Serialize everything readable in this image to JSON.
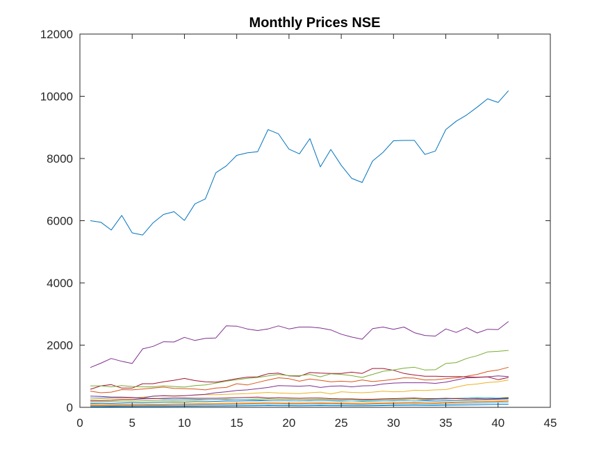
{
  "chart_data": {
    "type": "line",
    "title": "Monthly Prices NSE",
    "xlabel": "",
    "ylabel": "",
    "xlim": [
      0,
      45
    ],
    "ylim": [
      0,
      12000
    ],
    "x_ticks": [
      0,
      5,
      10,
      15,
      20,
      25,
      30,
      35,
      40,
      45
    ],
    "y_ticks": [
      0,
      2000,
      4000,
      6000,
      8000,
      10000,
      12000
    ],
    "x_tick_labels": [
      "0",
      "5",
      "10",
      "15",
      "20",
      "25",
      "30",
      "35",
      "40",
      "45"
    ],
    "y_tick_labels": [
      "0",
      "2000",
      "4000",
      "6000",
      "8000",
      "10000",
      "12000"
    ],
    "grid": false,
    "legend": "none",
    "x": [
      1,
      2,
      3,
      4,
      5,
      6,
      7,
      8,
      9,
      10,
      11,
      12,
      13,
      14,
      15,
      16,
      17,
      18,
      19,
      20,
      21,
      22,
      23,
      24,
      25,
      26,
      27,
      28,
      29,
      30,
      31,
      32,
      33,
      34,
      35,
      36,
      37,
      38,
      39,
      40,
      41
    ],
    "series": [
      {
        "color": "#0072BD",
        "values": [
          6000,
          5950,
          5700,
          6170,
          5610,
          5540,
          5930,
          6200,
          6290,
          6010,
          6540,
          6700,
          7540,
          7760,
          8100,
          8180,
          8220,
          8930,
          8790,
          8300,
          8150,
          8640,
          7730,
          8290,
          7780,
          7360,
          7230,
          7920,
          8200,
          8570,
          8580,
          8580,
          8130,
          8240,
          8930,
          9200,
          9400,
          9650,
          9920,
          9800,
          10180
        ]
      },
      {
        "color": "#7E2F8E",
        "values": [
          1280,
          1420,
          1570,
          1480,
          1410,
          1880,
          1960,
          2110,
          2100,
          2250,
          2150,
          2220,
          2230,
          2620,
          2610,
          2520,
          2470,
          2520,
          2620,
          2520,
          2580,
          2580,
          2550,
          2490,
          2350,
          2260,
          2190,
          2530,
          2580,
          2510,
          2580,
          2400,
          2310,
          2290,
          2520,
          2410,
          2560,
          2390,
          2510,
          2500,
          2760
        ]
      },
      {
        "color": "#77AC30",
        "values": [
          690,
          690,
          660,
          700,
          670,
          660,
          660,
          690,
          670,
          650,
          700,
          720,
          780,
          840,
          890,
          930,
          960,
          1010,
          1060,
          1020,
          1020,
          1060,
          980,
          1080,
          1060,
          1020,
          960,
          1060,
          1160,
          1200,
          1260,
          1290,
          1200,
          1210,
          1410,
          1440,
          1570,
          1660,
          1780,
          1800,
          1830
        ]
      },
      {
        "color": "#A2142F",
        "values": [
          580,
          690,
          730,
          620,
          620,
          760,
          760,
          820,
          870,
          930,
          860,
          820,
          810,
          860,
          920,
          970,
          980,
          1080,
          1100,
          1010,
          1000,
          1120,
          1100,
          1090,
          1090,
          1130,
          1090,
          1250,
          1250,
          1190,
          1090,
          1040,
          1000,
          1000,
          990,
          990,
          980,
          970,
          980,
          890,
          960
        ]
      },
      {
        "color": "#D95319",
        "values": [
          520,
          470,
          490,
          570,
          560,
          590,
          620,
          650,
          610,
          600,
          590,
          560,
          620,
          640,
          760,
          720,
          800,
          880,
          950,
          920,
          840,
          910,
          870,
          820,
          840,
          820,
          880,
          830,
          860,
          900,
          950,
          940,
          880,
          890,
          920,
          950,
          1000,
          1060,
          1150,
          1200,
          1290
        ]
      },
      {
        "color": "#7E2F8E",
        "values": [
          360,
          350,
          330,
          330,
          320,
          300,
          360,
          370,
          360,
          370,
          400,
          420,
          470,
          500,
          540,
          560,
          600,
          640,
          700,
          690,
          680,
          700,
          640,
          680,
          690,
          660,
          690,
          700,
          750,
          780,
          790,
          790,
          790,
          770,
          810,
          880,
          950,
          960,
          980,
          1010,
          990
        ]
      },
      {
        "color": "#EDB120",
        "values": [
          250,
          280,
          290,
          300,
          300,
          330,
          350,
          380,
          370,
          380,
          390,
          410,
          410,
          420,
          430,
          440,
          460,
          480,
          460,
          450,
          440,
          470,
          490,
          430,
          500,
          480,
          470,
          490,
          520,
          500,
          510,
          550,
          540,
          560,
          570,
          650,
          720,
          750,
          800,
          820,
          880
        ]
      },
      {
        "color": "#A2142F",
        "values": [
          210,
          220,
          230,
          250,
          250,
          270,
          280,
          290,
          300,
          300,
          290,
          290,
          290,
          300,
          310,
          320,
          330,
          300,
          310,
          300,
          290,
          300,
          300,
          280,
          270,
          270,
          260,
          260,
          270,
          280,
          290,
          300,
          280,
          280,
          290,
          280,
          270,
          280,
          270,
          280,
          300
        ]
      },
      {
        "color": "#4DBEEE",
        "values": [
          300,
          310,
          320,
          310,
          300,
          290,
          290,
          270,
          260,
          270,
          260,
          250,
          250,
          240,
          250,
          250,
          240,
          230,
          220,
          220,
          210,
          210,
          220,
          220,
          210,
          200,
          200,
          210,
          210,
          220,
          220,
          210,
          230,
          250,
          260,
          280,
          300,
          310,
          310,
          300,
          290
        ]
      },
      {
        "color": "#77AC30",
        "values": [
          170,
          180,
          190,
          200,
          200,
          210,
          220,
          230,
          220,
          230,
          230,
          240,
          250,
          260,
          250,
          260,
          270,
          270,
          260,
          260,
          250,
          250,
          260,
          250,
          240,
          250,
          230,
          240,
          250,
          250,
          260,
          270,
          250,
          260,
          270,
          290,
          300,
          320,
          310,
          300,
          320
        ]
      },
      {
        "color": "#0072BD",
        "values": [
          120,
          130,
          130,
          140,
          150,
          150,
          160,
          170,
          170,
          170,
          180,
          180,
          190,
          200,
          200,
          210,
          210,
          220,
          220,
          210,
          210,
          220,
          220,
          210,
          200,
          200,
          190,
          200,
          210,
          210,
          220,
          210,
          210,
          200,
          210,
          220,
          230,
          240,
          250,
          260,
          270
        ]
      },
      {
        "color": "#EDB120",
        "values": [
          90,
          90,
          100,
          100,
          100,
          110,
          110,
          110,
          120,
          120,
          120,
          130,
          130,
          140,
          140,
          150,
          150,
          160,
          160,
          150,
          150,
          160,
          160,
          150,
          150,
          140,
          140,
          150,
          150,
          160,
          160,
          160,
          150,
          150,
          160,
          170,
          180,
          190,
          200,
          210,
          220
        ]
      },
      {
        "color": "#D95319",
        "values": [
          60,
          60,
          65,
          70,
          70,
          75,
          80,
          80,
          85,
          90,
          95,
          100,
          105,
          110,
          115,
          120,
          125,
          130,
          125,
          120,
          120,
          125,
          130,
          125,
          120,
          115,
          110,
          120,
          125,
          130,
          135,
          140,
          135,
          130,
          140,
          150,
          160,
          170,
          180,
          190,
          200
        ]
      },
      {
        "color": "#4DBEEE",
        "values": [
          40,
          40,
          45,
          45,
          50,
          50,
          55,
          55,
          60,
          60,
          65,
          65,
          70,
          70,
          75,
          80,
          85,
          90,
          85,
          80,
          80,
          85,
          90,
          85,
          80,
          80,
          75,
          80,
          85,
          90,
          95,
          100,
          95,
          90,
          100,
          110,
          120,
          130,
          140,
          150,
          160
        ]
      },
      {
        "color": "#0072BD",
        "values": [
          20,
          20,
          22,
          24,
          25,
          26,
          28,
          30,
          32,
          34,
          36,
          38,
          40,
          42,
          45,
          48,
          50,
          55,
          52,
          50,
          48,
          50,
          55,
          52,
          50,
          48,
          46,
          50,
          55,
          60,
          62,
          65,
          62,
          60,
          65,
          70,
          75,
          80,
          90,
          95,
          100
        ]
      }
    ]
  }
}
